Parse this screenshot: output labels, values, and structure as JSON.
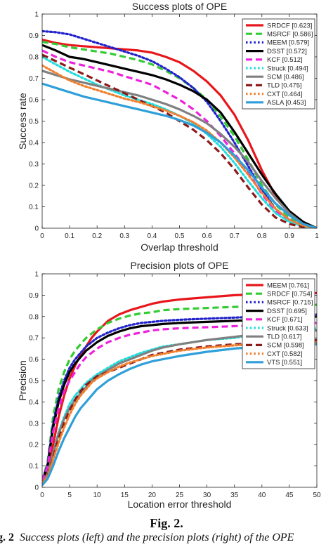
{
  "figure": {
    "label": "Fig. 2.",
    "caption_number": "g. 2",
    "caption_text": "Success plots (left) and the precision plots (right) of the OPE"
  },
  "chart_data": [
    {
      "type": "line",
      "title": "Success plots of OPE",
      "xlabel": "Overlap threshold",
      "ylabel": "Success rate",
      "xlim": [
        0,
        1
      ],
      "ylim": [
        0,
        1
      ],
      "xticks": [
        "0",
        "0.1",
        "0.2",
        "0.3",
        "0.4",
        "0.5",
        "0.6",
        "0.7",
        "0.8",
        "0.9",
        "1"
      ],
      "yticks": [
        "0",
        "0.1",
        "0.2",
        "0.3",
        "0.4",
        "0.5",
        "0.6",
        "0.7",
        "0.8",
        "0.9",
        "1"
      ],
      "grid": false,
      "legend_position": "top-right",
      "x": [
        0,
        0.05,
        0.1,
        0.15,
        0.2,
        0.25,
        0.3,
        0.35,
        0.4,
        0.45,
        0.5,
        0.55,
        0.6,
        0.65,
        0.7,
        0.75,
        0.8,
        0.85,
        0.9,
        0.95,
        1
      ],
      "series": [
        {
          "name": "SRDCF [0.623]",
          "color": "#e8161b",
          "dash": "solid",
          "values": [
            0.88,
            0.865,
            0.855,
            0.85,
            0.845,
            0.84,
            0.835,
            0.83,
            0.82,
            0.8,
            0.775,
            0.735,
            0.685,
            0.62,
            0.53,
            0.41,
            0.27,
            0.15,
            0.07,
            0.025,
            0
          ]
        },
        {
          "name": "MSRCF [0.586]",
          "color": "#33cc33",
          "dash": "dashed",
          "values": [
            0.87,
            0.86,
            0.845,
            0.835,
            0.825,
            0.815,
            0.8,
            0.785,
            0.765,
            0.735,
            0.7,
            0.655,
            0.6,
            0.52,
            0.43,
            0.32,
            0.2,
            0.11,
            0.05,
            0.015,
            0
          ]
        },
        {
          "name": "MEEM [0.579]",
          "color": "#2222cc",
          "dash": "dotted",
          "values": [
            0.92,
            0.915,
            0.905,
            0.885,
            0.865,
            0.845,
            0.825,
            0.805,
            0.78,
            0.745,
            0.705,
            0.655,
            0.59,
            0.5,
            0.4,
            0.29,
            0.18,
            0.09,
            0.04,
            0.012,
            0
          ]
        },
        {
          "name": "DSST [0.572]",
          "color": "#000000",
          "dash": "solid",
          "values": [
            0.855,
            0.83,
            0.8,
            0.79,
            0.775,
            0.76,
            0.745,
            0.73,
            0.715,
            0.695,
            0.67,
            0.64,
            0.6,
            0.54,
            0.45,
            0.35,
            0.25,
            0.16,
            0.08,
            0.03,
            0
          ]
        },
        {
          "name": "KCF [0.512]",
          "color": "#ee22dd",
          "dash": "dashed",
          "values": [
            0.83,
            0.8,
            0.775,
            0.76,
            0.745,
            0.73,
            0.71,
            0.69,
            0.67,
            0.635,
            0.6,
            0.555,
            0.5,
            0.43,
            0.35,
            0.26,
            0.16,
            0.08,
            0.035,
            0.01,
            0
          ]
        },
        {
          "name": "Struck [0.494]",
          "color": "#22dddd",
          "dash": "dotted",
          "values": [
            0.8,
            0.765,
            0.73,
            0.7,
            0.67,
            0.645,
            0.62,
            0.6,
            0.58,
            0.555,
            0.525,
            0.49,
            0.44,
            0.38,
            0.305,
            0.22,
            0.14,
            0.07,
            0.03,
            0.008,
            0
          ]
        },
        {
          "name": "SCM [0.486]",
          "color": "#808080",
          "dash": "solid",
          "values": [
            0.735,
            0.715,
            0.695,
            0.68,
            0.665,
            0.65,
            0.635,
            0.62,
            0.6,
            0.58,
            0.555,
            0.525,
            0.49,
            0.44,
            0.38,
            0.31,
            0.22,
            0.14,
            0.07,
            0.02,
            0
          ]
        },
        {
          "name": "TLD [0.475]",
          "color": "#8b1a1a",
          "dash": "dashed",
          "values": [
            0.81,
            0.78,
            0.75,
            0.72,
            0.69,
            0.66,
            0.63,
            0.6,
            0.57,
            0.54,
            0.5,
            0.46,
            0.41,
            0.35,
            0.275,
            0.19,
            0.11,
            0.05,
            0.02,
            0.005,
            0
          ]
        },
        {
          "name": "CXT [0.464]",
          "color": "#f08030",
          "dash": "dotted",
          "values": [
            0.76,
            0.725,
            0.69,
            0.665,
            0.645,
            0.625,
            0.605,
            0.59,
            0.57,
            0.55,
            0.525,
            0.495,
            0.455,
            0.4,
            0.33,
            0.25,
            0.165,
            0.09,
            0.04,
            0.012,
            0
          ]
        },
        {
          "name": "ASLA [0.453]",
          "color": "#2e9fd9",
          "dash": "solid",
          "values": [
            0.675,
            0.655,
            0.635,
            0.615,
            0.6,
            0.585,
            0.57,
            0.555,
            0.54,
            0.525,
            0.505,
            0.48,
            0.445,
            0.4,
            0.34,
            0.27,
            0.19,
            0.115,
            0.06,
            0.02,
            0
          ]
        }
      ]
    },
    {
      "type": "line",
      "title": "Precision plots of OPE",
      "xlabel": "Location error threshold",
      "ylabel": "Precision",
      "xlim": [
        0,
        50
      ],
      "ylim": [
        0,
        1
      ],
      "xticks": [
        "0",
        "5",
        "10",
        "15",
        "20",
        "25",
        "30",
        "35",
        "40",
        "45",
        "50"
      ],
      "yticks": [
        "0",
        "0.1",
        "0.2",
        "0.3",
        "0.4",
        "0.5",
        "0.6",
        "0.7",
        "0.8",
        "0.9",
        "1"
      ],
      "grid": false,
      "legend_position": "top-right",
      "x": [
        0,
        1,
        2,
        3,
        4,
        5,
        6,
        7,
        8,
        9,
        10,
        12,
        14,
        16,
        18,
        20,
        22,
        25,
        30,
        35,
        40,
        45,
        50
      ],
      "series": [
        {
          "name": "MEEM [0.761]",
          "color": "#e8161b",
          "dash": "solid",
          "values": [
            0.02,
            0.07,
            0.2,
            0.33,
            0.43,
            0.51,
            0.57,
            0.62,
            0.66,
            0.7,
            0.73,
            0.78,
            0.81,
            0.83,
            0.845,
            0.86,
            0.87,
            0.88,
            0.89,
            0.9,
            0.905,
            0.908,
            0.91
          ]
        },
        {
          "name": "SRDCF [0.754]",
          "color": "#33cc33",
          "dash": "dashed",
          "values": [
            0.03,
            0.12,
            0.33,
            0.46,
            0.54,
            0.6,
            0.64,
            0.67,
            0.7,
            0.72,
            0.74,
            0.77,
            0.79,
            0.805,
            0.815,
            0.82,
            0.83,
            0.835,
            0.84,
            0.845,
            0.85,
            0.852,
            0.855
          ]
        },
        {
          "name": "MSRCF [0.715]",
          "color": "#2222cc",
          "dash": "dotted",
          "values": [
            0.03,
            0.11,
            0.3,
            0.42,
            0.5,
            0.56,
            0.6,
            0.63,
            0.66,
            0.68,
            0.7,
            0.725,
            0.745,
            0.76,
            0.77,
            0.775,
            0.78,
            0.785,
            0.79,
            0.795,
            0.8,
            0.805,
            0.81
          ]
        },
        {
          "name": "DSST [0.695]",
          "color": "#000000",
          "dash": "solid",
          "values": [
            0.03,
            0.1,
            0.28,
            0.4,
            0.48,
            0.54,
            0.58,
            0.61,
            0.64,
            0.66,
            0.68,
            0.71,
            0.73,
            0.745,
            0.755,
            0.76,
            0.765,
            0.77,
            0.775,
            0.78,
            0.785,
            0.79,
            0.8
          ]
        },
        {
          "name": "KCF [0.671]",
          "color": "#ee22dd",
          "dash": "dashed",
          "values": [
            0.03,
            0.1,
            0.26,
            0.37,
            0.45,
            0.5,
            0.54,
            0.58,
            0.61,
            0.63,
            0.65,
            0.68,
            0.7,
            0.715,
            0.725,
            0.735,
            0.74,
            0.745,
            0.75,
            0.755,
            0.76,
            0.765,
            0.77
          ]
        },
        {
          "name": "Struck [0.633]",
          "color": "#22dddd",
          "dash": "dotted",
          "values": [
            0.02,
            0.06,
            0.16,
            0.26,
            0.33,
            0.39,
            0.43,
            0.46,
            0.49,
            0.51,
            0.53,
            0.56,
            0.59,
            0.61,
            0.63,
            0.645,
            0.66,
            0.67,
            0.69,
            0.7,
            0.72,
            0.73,
            0.745
          ]
        },
        {
          "name": "TLD [0.617]",
          "color": "#808080",
          "dash": "solid",
          "values": [
            0.02,
            0.06,
            0.16,
            0.25,
            0.32,
            0.37,
            0.41,
            0.44,
            0.47,
            0.5,
            0.52,
            0.55,
            0.58,
            0.6,
            0.62,
            0.64,
            0.655,
            0.67,
            0.69,
            0.705,
            0.72,
            0.73,
            0.735
          ]
        },
        {
          "name": "SCM [0.598]",
          "color": "#8b1a1a",
          "dash": "dashed",
          "values": [
            0.02,
            0.05,
            0.14,
            0.23,
            0.3,
            0.36,
            0.41,
            0.45,
            0.48,
            0.5,
            0.52,
            0.54,
            0.56,
            0.58,
            0.6,
            0.62,
            0.63,
            0.645,
            0.66,
            0.67,
            0.675,
            0.68,
            0.69
          ]
        },
        {
          "name": "CXT [0.582]",
          "color": "#f08030",
          "dash": "dotted",
          "values": [
            0.02,
            0.05,
            0.13,
            0.21,
            0.28,
            0.34,
            0.39,
            0.43,
            0.46,
            0.49,
            0.51,
            0.54,
            0.565,
            0.585,
            0.6,
            0.615,
            0.625,
            0.64,
            0.655,
            0.665,
            0.67,
            0.675,
            0.68
          ]
        },
        {
          "name": "VTS [0.551]",
          "color": "#2e9fd9",
          "dash": "solid",
          "values": [
            0.01,
            0.04,
            0.1,
            0.17,
            0.23,
            0.28,
            0.33,
            0.37,
            0.4,
            0.43,
            0.46,
            0.5,
            0.53,
            0.555,
            0.575,
            0.59,
            0.6,
            0.615,
            0.635,
            0.65,
            0.66,
            0.665,
            0.67
          ]
        }
      ]
    }
  ]
}
